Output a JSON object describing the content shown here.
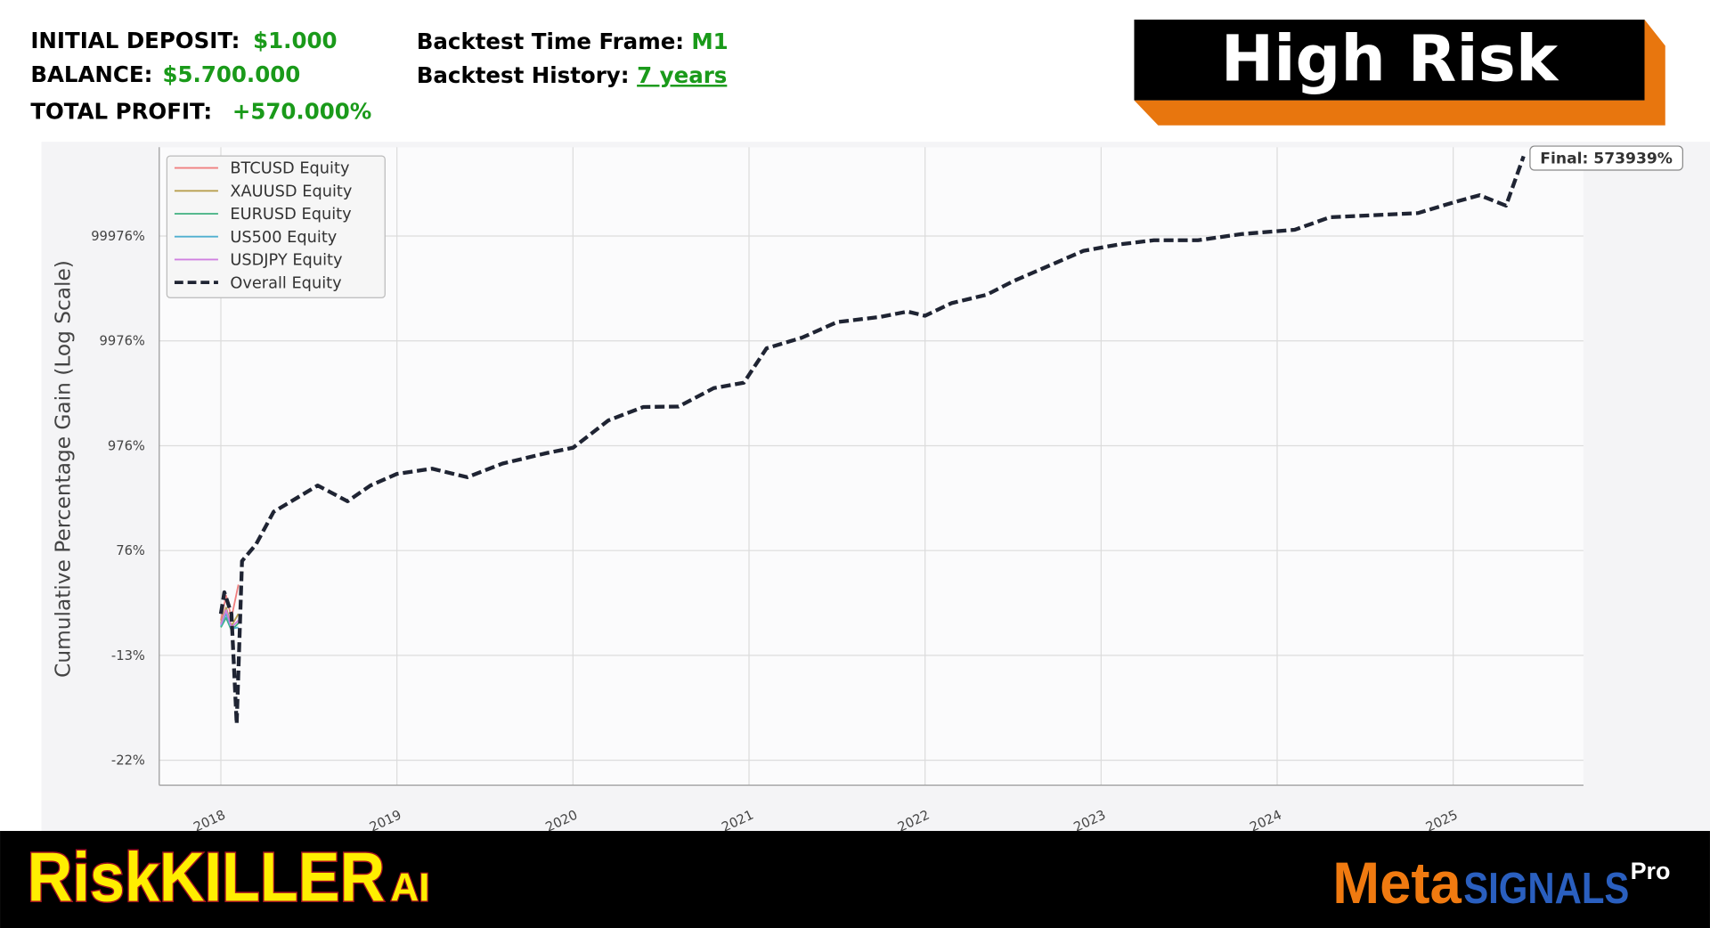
{
  "header": {
    "initial_deposit_label": "INITIAL DEPOSIT:",
    "initial_deposit_value": "$1.000",
    "balance_label": "BALANCE:",
    "balance_value": "$5.700.000",
    "total_profit_label": "TOTAL PROFIT:",
    "total_profit_value": "+570.000%",
    "time_frame_label": "Backtest Time Frame:",
    "time_frame_value": "M1",
    "history_label": "Backtest History:",
    "history_value": "7 years"
  },
  "badge": "High Risk",
  "footer": {
    "brand": "RiskKILLER",
    "brand_suffix": "AI",
    "logo_meta": "Meta",
    "logo_signals": "SIGNALS",
    "logo_pro": "Pro"
  },
  "chart_data": {
    "type": "line",
    "y_label": "Cumulative Percentage Gain (Log Scale)",
    "annotation": "Final: 573939%",
    "log_scale": true,
    "grid": true,
    "legend": "upper left",
    "xlim": [
      2017.65,
      2025.74
    ],
    "xticks": [
      2018,
      2019,
      2020,
      2021,
      2022,
      2023,
      2024,
      2025
    ],
    "ylim": [
      -24,
      700000
    ],
    "yticks": [
      {
        "value": -22,
        "label": "-22%"
      },
      {
        "value": -13,
        "label": "-13%"
      },
      {
        "value": 76,
        "label": "76%"
      },
      {
        "value": 976,
        "label": "976%"
      },
      {
        "value": 9976,
        "label": "9976%"
      },
      {
        "value": 99976,
        "label": "99976%"
      }
    ],
    "series": [
      {
        "name": "BTCUSD Equity",
        "color": "#f08080",
        "style": "solid",
        "x": [
          2018.0,
          2018.03,
          2018.06,
          2018.1
        ],
        "values": [
          10,
          30,
          12,
          40
        ]
      },
      {
        "name": "XAUUSD Equity",
        "color": "#b8a050",
        "style": "solid",
        "x": [
          2018.0,
          2018.03,
          2018.06,
          2018.1
        ],
        "values": [
          8,
          20,
          6,
          15
        ]
      },
      {
        "name": "EURUSD Equity",
        "color": "#40b080",
        "style": "solid",
        "x": [
          2018.0,
          2018.03,
          2018.06,
          2018.1
        ],
        "values": [
          5,
          12,
          3,
          8
        ]
      },
      {
        "name": "US500 Equity",
        "color": "#50b0d0",
        "style": "solid",
        "x": [
          2018.0,
          2018.03,
          2018.06,
          2018.1
        ],
        "values": [
          6,
          15,
          4,
          5
        ]
      },
      {
        "name": "USDJPY Equity",
        "color": "#d080e0",
        "style": "solid",
        "x": [
          2018.0,
          2018.03,
          2018.06,
          2018.1
        ],
        "values": [
          7,
          18,
          5,
          10
        ]
      },
      {
        "name": "Overall Equity",
        "color": "#1f2433",
        "style": "dashed",
        "x": [
          2018.0,
          2018.02,
          2018.06,
          2018.09,
          2018.12,
          2018.2,
          2018.3,
          2018.4,
          2018.55,
          2018.72,
          2018.85,
          2019.0,
          2019.2,
          2019.4,
          2019.6,
          2019.85,
          2020.0,
          2020.2,
          2020.4,
          2020.6,
          2020.8,
          2020.97,
          2021.1,
          2021.3,
          2021.5,
          2021.75,
          2021.9,
          2022.0,
          2022.15,
          2022.35,
          2022.5,
          2022.75,
          2022.9,
          2023.1,
          2023.3,
          2023.55,
          2023.8,
          2024.1,
          2024.3,
          2024.55,
          2024.8,
          2025.0,
          2025.15,
          2025.3,
          2025.4
        ],
        "values": [
          15,
          33,
          15,
          -19,
          64,
          96,
          244,
          312,
          441,
          312,
          441,
          561,
          623,
          525,
          691,
          848,
          938,
          1741,
          2360,
          2380,
          3581,
          4021,
          8510,
          10690,
          15100,
          16960,
          19040,
          17360,
          22910,
          27570,
          37140,
          56260,
          72340,
          83080,
          91100,
          91100,
          104600,
          114700,
          150900,
          158000,
          165500,
          208300,
          244800,
          194400,
          573939
        ]
      }
    ]
  }
}
